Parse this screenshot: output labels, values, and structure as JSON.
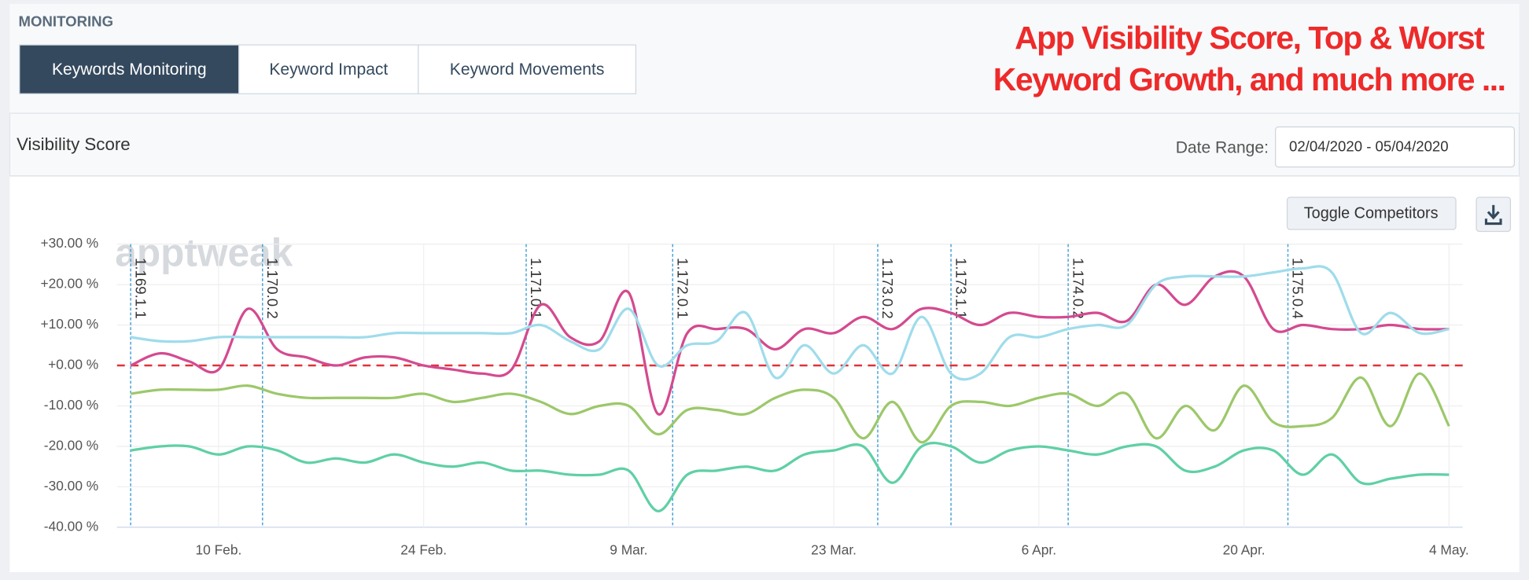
{
  "header": {
    "title": "MONITORING"
  },
  "tabs": [
    {
      "label": "Keywords Monitoring",
      "active": true
    },
    {
      "label": "Keyword Impact",
      "active": false
    },
    {
      "label": "Keyword Movements",
      "active": false
    }
  ],
  "annotation": {
    "lines": [
      "App Visibility Score, Top & Worst",
      "Keyword Growth, and much more ..."
    ],
    "color": "#ee2a2a"
  },
  "section": {
    "title": "Visibility Score",
    "date_range_label": "Date Range:",
    "date_range_value": "02/04/2020 - 05/04/2020"
  },
  "buttons": {
    "toggle": "Toggle Competitors"
  },
  "watermark": "apptweak",
  "chart_data": {
    "type": "line",
    "categories": [
      null,
      null,
      null,
      "10 Feb.",
      null,
      null,
      null,
      null,
      null,
      null,
      "24 Feb.",
      null,
      null,
      null,
      null,
      null,
      null,
      "9 Mar.",
      null,
      null,
      null,
      null,
      null,
      null,
      "23 Mar.",
      null,
      null,
      null,
      null,
      null,
      null,
      "6 Apr.",
      null,
      null,
      null,
      null,
      null,
      null,
      "20 Apr.",
      null,
      null,
      null,
      null,
      null,
      null,
      "4 May."
    ],
    "series": [
      {
        "color": "#d44a8f",
        "values": [
          0,
          3,
          1,
          -1,
          14,
          4,
          2,
          0,
          2,
          2,
          0,
          -1,
          -2,
          -1,
          15,
          7,
          6,
          18,
          -12,
          8,
          9,
          9,
          4,
          9,
          8,
          12,
          9,
          14,
          13,
          10,
          13,
          12,
          12,
          13,
          11,
          20,
          15,
          22,
          22,
          9,
          10,
          9,
          9,
          10,
          9,
          9
        ]
      },
      {
        "color": "#9fdceb",
        "values": [
          7,
          6,
          6,
          7,
          7,
          7,
          7,
          7,
          7,
          8,
          8,
          8,
          8,
          8,
          10,
          6,
          4,
          14,
          0,
          5,
          6,
          13,
          -3,
          5,
          -2,
          5,
          -2,
          12,
          -2,
          -2,
          7,
          7,
          9,
          10,
          10,
          20,
          22,
          22,
          22,
          23,
          24,
          23,
          8,
          13,
          8,
          9
        ]
      },
      {
        "color": "#9cc86a",
        "values": [
          -7,
          -6,
          -6,
          -6,
          -5,
          -7,
          -8,
          -8,
          -8,
          -8,
          -7,
          -9,
          -8,
          -7,
          -9,
          -12,
          -10,
          -10,
          -17,
          -11,
          -11,
          -12,
          -8,
          -6,
          -8,
          -18,
          -9,
          -19,
          -10,
          -9,
          -10,
          -8,
          -7,
          -10,
          -7,
          -18,
          -10,
          -16,
          -5,
          -14,
          -15,
          -13,
          -3,
          -15,
          -2,
          -15
        ]
      },
      {
        "color": "#5fd0a5",
        "values": [
          -21,
          -20,
          -20,
          -22,
          -20,
          -21,
          -24,
          -23,
          -24,
          -22,
          -24,
          -25,
          -24,
          -26,
          -26,
          -27,
          -27,
          -26,
          -36,
          -27,
          -26,
          -25,
          -26,
          -22,
          -21,
          -20,
          -29,
          -20,
          -20,
          -24,
          -21,
          -20,
          -21,
          -22,
          -20,
          -20,
          -26,
          -25,
          -21,
          -21,
          -27,
          -22,
          -29,
          -28,
          -27,
          -27
        ]
      }
    ],
    "ylim": [
      -40,
      30
    ],
    "yticks": [
      {
        "value": -40,
        "label": "-40.00 %"
      },
      {
        "value": -30,
        "label": "-30.00 %"
      },
      {
        "value": -20,
        "label": "-20.00 %"
      },
      {
        "value": -10,
        "label": "-10.00 %"
      },
      {
        "value": 0,
        "label": "+0.00 %"
      },
      {
        "value": 10,
        "label": "+10.00 %"
      },
      {
        "value": 20,
        "label": "+20.00 %"
      },
      {
        "value": 30,
        "label": "+30.00 %"
      }
    ],
    "grid": true,
    "zero_line_color": "#e0323a",
    "version_markers": [
      {
        "label": "1.169.1.1",
        "index": 0
      },
      {
        "label": "1.170.0.2",
        "index": 4.5
      },
      {
        "label": "1.171.0.1",
        "index": 13.5
      },
      {
        "label": "1.172.0.1",
        "index": 18.5
      },
      {
        "label": "1.173.0.2",
        "index": 25.5
      },
      {
        "label": "1.173.1.1",
        "index": 28
      },
      {
        "label": "1.174.0.2",
        "index": 32
      },
      {
        "label": "1.175.0.4",
        "index": 39.5
      }
    ],
    "marker_color": "#4aa3d8"
  }
}
